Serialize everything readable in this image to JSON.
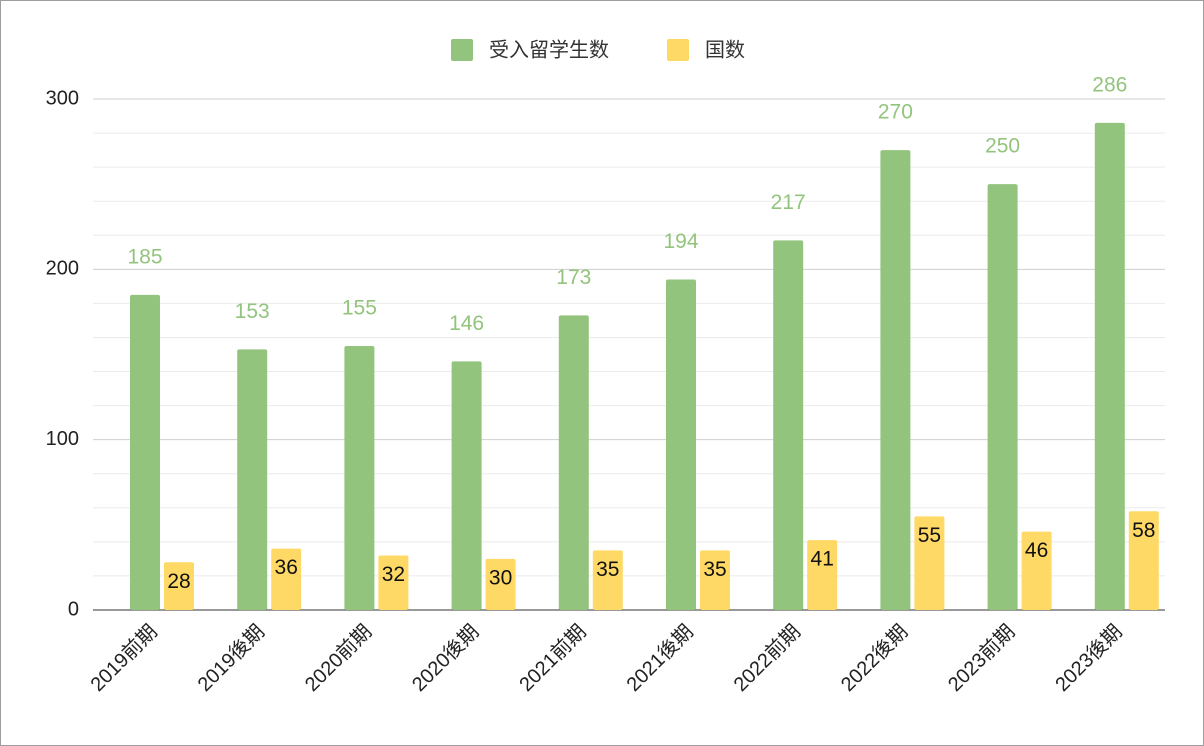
{
  "chart_data": {
    "type": "bar",
    "categories": [
      "2019前期",
      "2019後期",
      "2020前期",
      "2020後期",
      "2021前期",
      "2021後期",
      "2022前期",
      "2022後期",
      "2023前期",
      "2023後期"
    ],
    "series": [
      {
        "name": "受入留学生数",
        "color": "#93c47d",
        "values": [
          185,
          153,
          155,
          146,
          173,
          194,
          217,
          270,
          250,
          286
        ]
      },
      {
        "name": "国数",
        "color": "#ffd966",
        "values": [
          28,
          36,
          32,
          30,
          35,
          35,
          41,
          55,
          46,
          58
        ]
      }
    ],
    "ylim": [
      0,
      300
    ],
    "yticks": [
      0,
      100,
      200,
      300
    ],
    "minor_yticks": [
      20,
      40,
      60,
      80,
      120,
      140,
      160,
      180,
      220,
      240,
      260,
      280
    ],
    "grid": true,
    "legend": "top"
  }
}
